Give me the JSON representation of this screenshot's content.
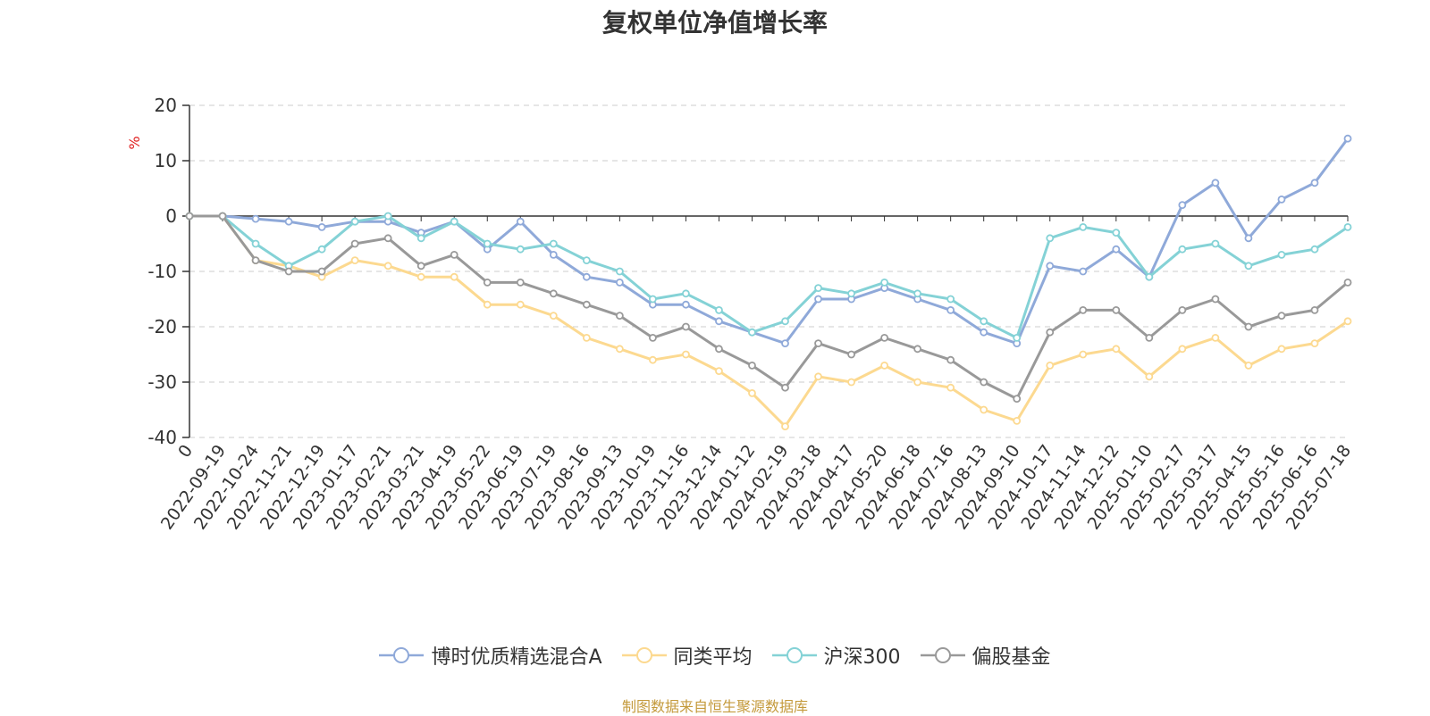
{
  "chart_data": {
    "type": "line",
    "title": "复权单位净值增长率",
    "ylabel": "%",
    "ylim": [
      -40,
      20
    ],
    "yticks": [
      20,
      10,
      0,
      -10,
      -20,
      -30,
      -40
    ],
    "grid": true,
    "legend_position": "bottom",
    "categories": [
      "2022-09-19",
      "2022-10-24",
      "2022-11-21",
      "2022-12-19",
      "2023-01-17",
      "2023-02-21",
      "2023-03-21",
      "2023-04-19",
      "2023-05-22",
      "2023-06-19",
      "2023-07-19",
      "2023-08-16",
      "2023-09-13",
      "2023-10-19",
      "2023-11-16",
      "2023-12-14",
      "2024-01-12",
      "2024-02-19",
      "2024-03-18",
      "2024-04-17",
      "2024-05-20",
      "2024-06-18",
      "2024-07-16",
      "2024-08-13",
      "2024-09-10",
      "2024-10-17",
      "2024-11-14",
      "2024-12-12",
      "2025-01-10",
      "2025-02-17",
      "2025-03-17",
      "2025-04-15",
      "2025-05-16",
      "2025-06-16",
      "2025-07-18"
    ],
    "x_start_label": "0",
    "series": [
      {
        "name": "博时优质精选混合A",
        "color": "#8fa9d9",
        "values": [
          0,
          -0.5,
          -1,
          -2,
          -1,
          -1,
          -3,
          -1,
          -6,
          -1,
          -7,
          -11,
          -12,
          -16,
          -16,
          -19,
          -21,
          -23,
          -15,
          -15,
          -13,
          -15,
          -17,
          -21,
          -23,
          -9,
          -10,
          -6,
          -11,
          2,
          6,
          -4,
          3,
          6,
          14
        ]
      },
      {
        "name": "同类平均",
        "color": "#fcd990",
        "values": [
          0,
          -8,
          -9,
          -11,
          -8,
          -9,
          -11,
          -11,
          -16,
          -16,
          -18,
          -22,
          -24,
          -26,
          -25,
          -28,
          -32,
          -38,
          -29,
          -30,
          -27,
          -30,
          -31,
          -35,
          -37,
          -27,
          -25,
          -24,
          -29,
          -24,
          -22,
          -27,
          -24,
          -23,
          -19
        ]
      },
      {
        "name": "沪深300",
        "color": "#84d2d6",
        "values": [
          0,
          -5,
          -9,
          -6,
          -1,
          0,
          -4,
          -1,
          -5,
          -6,
          -5,
          -8,
          -10,
          -15,
          -14,
          -17,
          -21,
          -19,
          -13,
          -14,
          -12,
          -14,
          -15,
          -19,
          -22,
          -4,
          -2,
          -3,
          -11,
          -6,
          -5,
          -9,
          -7,
          -6,
          -2
        ]
      },
      {
        "name": "偏股基金",
        "color": "#999999",
        "values": [
          0,
          -8,
          -10,
          -10,
          -5,
          -4,
          -9,
          -7,
          -12,
          -12,
          -14,
          -16,
          -18,
          -22,
          -20,
          -24,
          -27,
          -31,
          -23,
          -25,
          -22,
          -24,
          -26,
          -30,
          -33,
          -21,
          -17,
          -17,
          -22,
          -17,
          -15,
          -20,
          -18,
          -17,
          -12
        ]
      }
    ]
  },
  "source_note": "制图数据来自恒生聚源数据库"
}
